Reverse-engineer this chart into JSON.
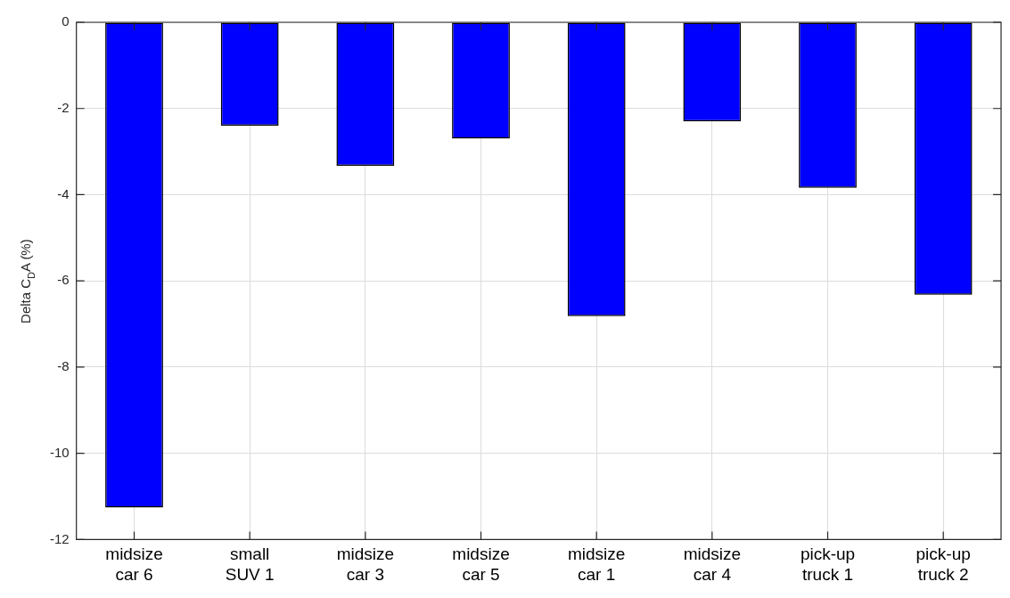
{
  "chart_data": {
    "type": "bar",
    "ylabel": "Delta C$_{D}$A (%)",
    "categories": [
      "midsize car 6",
      "small SUV 1",
      "midsize car 3",
      "midsize car 5",
      "midsize car 1",
      "midsize car 4",
      "pick-up truck 1",
      "pick-up truck 2"
    ],
    "values": [
      -11.26,
      -2.4,
      -3.33,
      -2.7,
      -6.82,
      -2.3,
      -3.84,
      -6.32
    ],
    "color": "#0000ff",
    "ylim": [
      -12,
      0
    ],
    "yticks": [
      -12,
      -10,
      -8,
      -6,
      -4,
      -2,
      0
    ],
    "grid": true
  }
}
